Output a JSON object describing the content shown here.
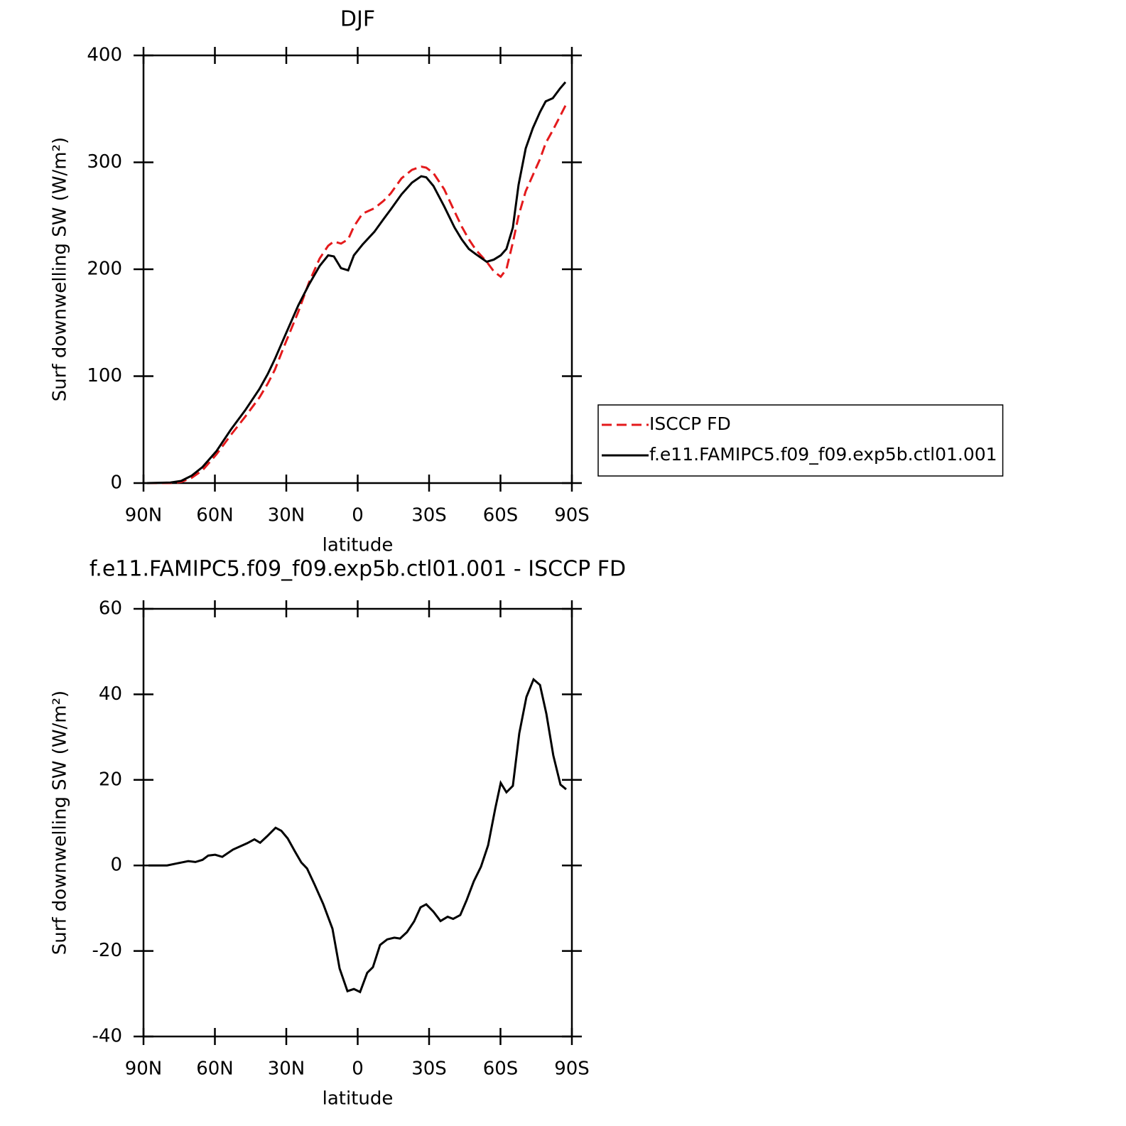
{
  "chart_data": [
    {
      "type": "line",
      "title": "DJF",
      "xlabel": "latitude",
      "ylabel": "Surf downwelling SW (W/m²)",
      "x": [
        88.5,
        78.7,
        74.2,
        69.7,
        65.2,
        59.3,
        53.3,
        47.3,
        41.3,
        37.8,
        34.8,
        30.9,
        25,
        20.4,
        16,
        12.4,
        10,
        7,
        4,
        1.6,
        -2,
        -7,
        -10.9,
        -13.9,
        -18.4,
        -22.8,
        -26.7,
        -28.8,
        -31.8,
        -36.3,
        -40.7,
        -43.7,
        -46.7,
        -49.7,
        -54.2,
        -57.2,
        -60.1,
        -62.5,
        -65.2,
        -67.6,
        -70.6,
        -73.6,
        -76.6,
        -79,
        -82,
        -85,
        -87.3
      ],
      "series": [
        {
          "name": "ISCCP FD",
          "color": "#e41a1c",
          "line_style": "dashed",
          "values": [
            0,
            0,
            1,
            5,
            12,
            27,
            45,
            62,
            80,
            93,
            106,
            128,
            160,
            188,
            210,
            222,
            226,
            224,
            228,
            240,
            252,
            257,
            264,
            271,
            285,
            293,
            296,
            295,
            290,
            275,
            254,
            240,
            228,
            218,
            207,
            198,
            193,
            200,
            225,
            250,
            273,
            288,
            303,
            318,
            330,
            343,
            353
          ]
        },
        {
          "name": "f.e11.FAMIPC5.f09_f09.exp5b.ctl01.001",
          "color": "#000000",
          "line_style": "solid",
          "values": [
            0,
            0.5,
            2,
            7,
            15,
            30,
            50,
            68,
            88,
            102,
            116,
            136,
            166,
            186,
            203,
            213,
            212,
            201,
            199,
            213,
            223,
            235,
            247,
            256,
            270,
            281,
            287,
            286,
            278,
            259,
            239,
            228,
            219,
            214,
            207,
            209,
            213,
            219,
            239,
            279,
            313,
            332,
            347,
            357,
            360,
            369,
            375
          ]
        }
      ],
      "xlim": [
        90,
        -90
      ],
      "ylim": [
        0,
        400
      ],
      "xticks": [
        {
          "value": 90,
          "label": "90N"
        },
        {
          "value": 60,
          "label": "60N"
        },
        {
          "value": 30,
          "label": "30N"
        },
        0,
        {
          "value": -30,
          "label": "30S"
        },
        {
          "value": -60,
          "label": "60S"
        },
        {
          "value": -90,
          "label": "90S"
        }
      ],
      "yticks": [
        0,
        100,
        200,
        300,
        400
      ],
      "legend": "outside right"
    },
    {
      "type": "line",
      "title": "f.e11.FAMIPC5.f09_f09.exp5b.ctl01.001 - ISCCP FD",
      "xlabel": "latitude",
      "ylabel": "Surf downwelling SW (W/m²)",
      "x": [
        87.9,
        80.1,
        75.7,
        71.2,
        68.2,
        65.2,
        62.8,
        59.9,
        56.9,
        52.4,
        46.4,
        43.4,
        41,
        38.1,
        34.5,
        32.1,
        29.4,
        26.4,
        23.7,
        21.3,
        18.1,
        14.5,
        10.6,
        7.6,
        4.3,
        1.6,
        -1,
        -4,
        -6.4,
        -9.4,
        -12.4,
        -15.4,
        -17.8,
        -20.7,
        -23.7,
        -26.4,
        -28.8,
        -31.8,
        -34.8,
        -37.8,
        -40.1,
        -43.1,
        -45.8,
        -48.8,
        -51.8,
        -54.8,
        -57.8,
        -60.1,
        -62.5,
        -65.2,
        -67.9,
        -70.9,
        -73.9,
        -76.6,
        -79.3,
        -82.2,
        -85.2,
        -87.6
      ],
      "values": [
        0,
        0,
        0.5,
        1,
        0.8,
        1.3,
        2.3,
        2.5,
        2,
        3.7,
        5.2,
        6.1,
        5.3,
        6.8,
        8.8,
        8.1,
        6.3,
        3.3,
        0.7,
        -0.7,
        -4.5,
        -9,
        -14.8,
        -24.1,
        -29.4,
        -28.9,
        -29.6,
        -25.1,
        -23.8,
        -18.6,
        -17.3,
        -16.9,
        -17.1,
        -15.6,
        -13.1,
        -9.8,
        -9.1,
        -10.8,
        -13,
        -12,
        -12.5,
        -11.6,
        -8.1,
        -3.7,
        -0.3,
        4.7,
        13.3,
        19.3,
        17.1,
        18.6,
        30.9,
        39.4,
        43.5,
        42.2,
        35.4,
        25.7,
        18.9,
        17.8
      ],
      "color": "#000000",
      "xlim": [
        90,
        -90
      ],
      "ylim": [
        -40,
        60
      ],
      "xticks": [
        {
          "value": 90,
          "label": "90N"
        },
        {
          "value": 60,
          "label": "60N"
        },
        {
          "value": 30,
          "label": "30N"
        },
        0,
        {
          "value": -30,
          "label": "30S"
        },
        {
          "value": -60,
          "label": "60S"
        },
        {
          "value": -90,
          "label": "90S"
        }
      ],
      "yticks": [
        -40,
        -20,
        0,
        20,
        40,
        60
      ]
    }
  ]
}
